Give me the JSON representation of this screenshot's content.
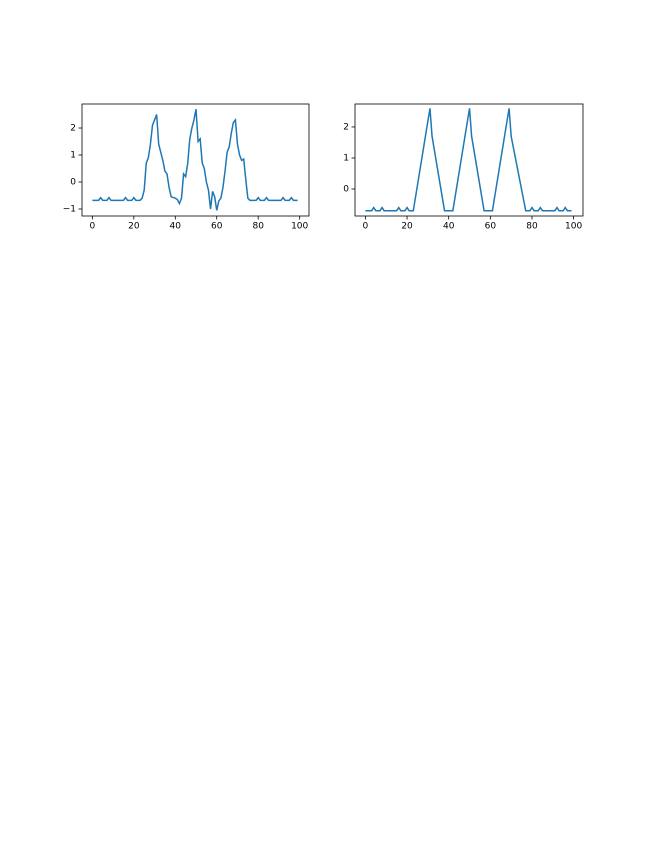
{
  "chart_data": [
    {
      "type": "line",
      "x": [
        0,
        3,
        4,
        5,
        7,
        8,
        9,
        15,
        16,
        17,
        19,
        20,
        21,
        23,
        24,
        25,
        26,
        27,
        28,
        29,
        30,
        31,
        32,
        33,
        34,
        35,
        36,
        37,
        38,
        40,
        41,
        42,
        43,
        44,
        45,
        46,
        47,
        48,
        49,
        50,
        51,
        52,
        53,
        54,
        55,
        56,
        57,
        58,
        59,
        60,
        61,
        62,
        63,
        64,
        65,
        66,
        67,
        68,
        69,
        70,
        71,
        72,
        73,
        74,
        75,
        76,
        79,
        80,
        81,
        83,
        84,
        85,
        91,
        92,
        93,
        95,
        96,
        97,
        99
      ],
      "series": [
        {
          "name": null,
          "color": "#1f77b4",
          "values": [
            -0.68,
            -0.68,
            -0.58,
            -0.68,
            -0.68,
            -0.58,
            -0.68,
            -0.68,
            -0.58,
            -0.68,
            -0.68,
            -0.58,
            -0.68,
            -0.68,
            -0.6,
            -0.3,
            0.7,
            0.9,
            1.4,
            2.1,
            2.3,
            2.5,
            1.4,
            1.1,
            0.8,
            0.4,
            0.3,
            -0.2,
            -0.55,
            -0.6,
            -0.65,
            -0.8,
            -0.6,
            0.3,
            0.2,
            0.7,
            1.6,
            2.0,
            2.3,
            2.7,
            1.5,
            1.6,
            0.7,
            0.5,
            0.0,
            -0.3,
            -1.0,
            -0.35,
            -0.55,
            -1.05,
            -0.7,
            -0.6,
            -0.2,
            0.4,
            1.1,
            1.3,
            1.8,
            2.2,
            2.3,
            1.4,
            1.0,
            0.8,
            0.85,
            0.1,
            -0.6,
            -0.68,
            -0.68,
            -0.58,
            -0.68,
            -0.68,
            -0.58,
            -0.68,
            -0.68,
            -0.58,
            -0.68,
            -0.68,
            -0.58,
            -0.68,
            -0.68
          ]
        }
      ],
      "xlim": [
        -5,
        104.5
      ],
      "ylim": [
        -1.26,
        2.89
      ],
      "xticks": [
        0,
        20,
        40,
        60,
        80,
        100
      ],
      "yticks": [
        {
          "value": -1,
          "label": "−1"
        },
        0,
        1,
        2
      ]
    },
    {
      "type": "line",
      "x": [
        0,
        3,
        4,
        5,
        7,
        8,
        9,
        15,
        16,
        17,
        19,
        20,
        21,
        23,
        31,
        32,
        38,
        42,
        50,
        51,
        57,
        61,
        69,
        70,
        77,
        79,
        80,
        81,
        83,
        84,
        85,
        91,
        92,
        93,
        95,
        96,
        97,
        99
      ],
      "series": [
        {
          "name": null,
          "color": "#1f77b4",
          "values": [
            -0.7,
            -0.7,
            -0.6,
            -0.7,
            -0.7,
            -0.6,
            -0.7,
            -0.7,
            -0.6,
            -0.7,
            -0.7,
            -0.6,
            -0.7,
            -0.7,
            2.6,
            1.7,
            -0.7,
            -0.7,
            2.6,
            1.7,
            -0.7,
            -0.7,
            2.6,
            1.7,
            -0.7,
            -0.7,
            -0.6,
            -0.7,
            -0.7,
            -0.6,
            -0.7,
            -0.7,
            -0.6,
            -0.7,
            -0.7,
            -0.6,
            -0.7,
            -0.7
          ]
        }
      ],
      "xlim": [
        -5,
        104.5
      ],
      "ylim": [
        -0.87,
        2.74
      ],
      "xticks": [
        0,
        20,
        40,
        60,
        80,
        100
      ],
      "yticks": [
        0,
        1,
        2
      ]
    }
  ]
}
